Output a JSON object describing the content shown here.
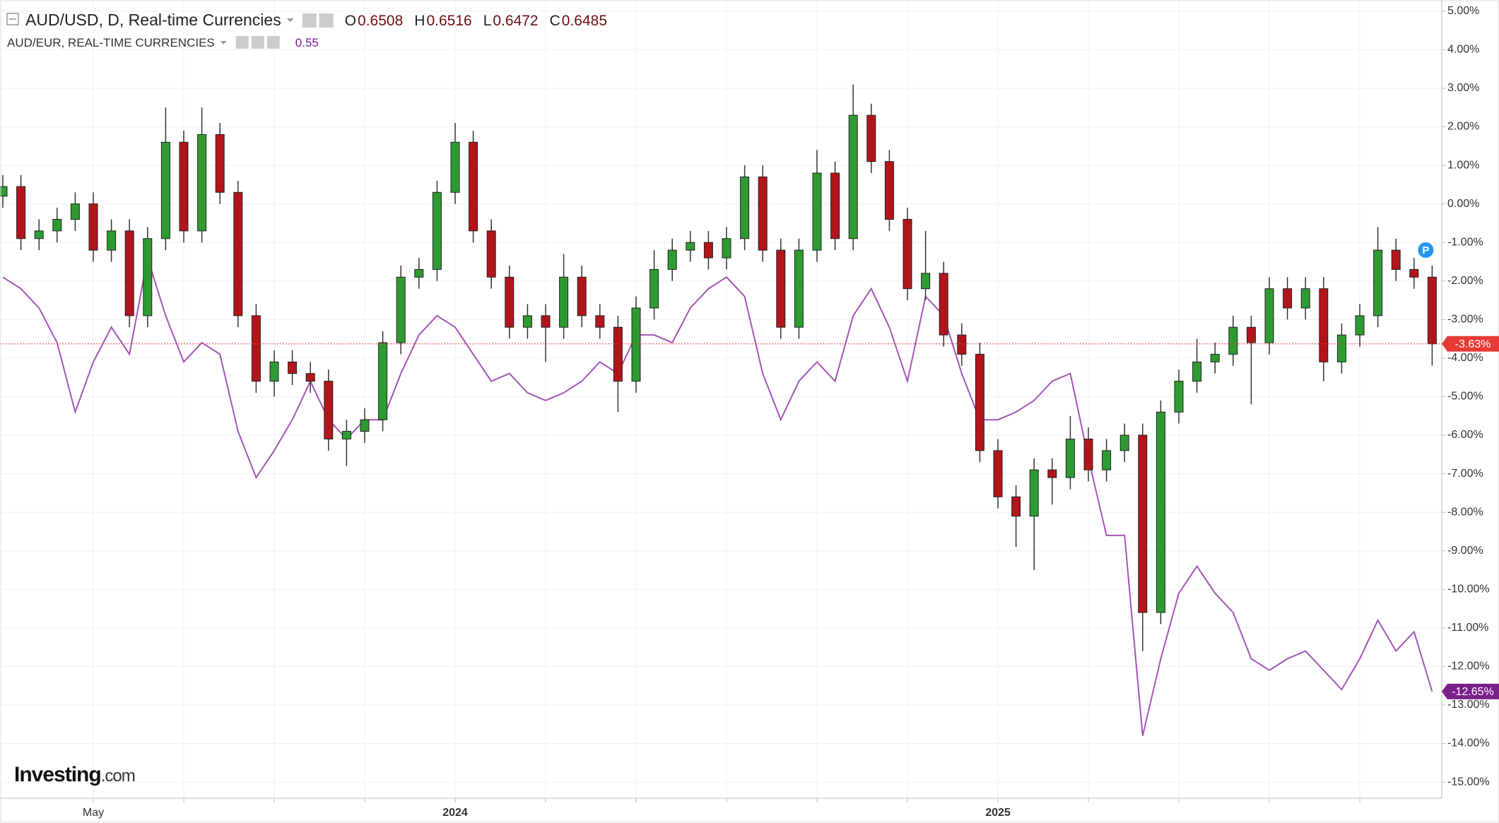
{
  "chart_data": {
    "type": "candlestick",
    "categories": [
      null,
      null,
      null,
      null,
      null,
      "May",
      null,
      null,
      null,
      null,
      null,
      null,
      null,
      null,
      null,
      null,
      null,
      null,
      null,
      null,
      null,
      null,
      null,
      null,
      null,
      "2024",
      null,
      null,
      null,
      null,
      null,
      null,
      null,
      null,
      null,
      null,
      null,
      null,
      null,
      null,
      null,
      null,
      null,
      null,
      null,
      null,
      null,
      null,
      null,
      null,
      null,
      null,
      null,
      null,
      null,
      "2025",
      null,
      null,
      null,
      null,
      null,
      null,
      null,
      null,
      null,
      null,
      null,
      null,
      null,
      null,
      null,
      null,
      null,
      null,
      null,
      null,
      null,
      null,
      null,
      null
    ],
    "ylim": [
      -15.42,
      5.29
    ],
    "yticks": [
      {
        "value": 5,
        "label": "5.00%"
      },
      {
        "value": 4,
        "label": "4.00%"
      },
      {
        "value": 3,
        "label": "3.00%"
      },
      {
        "value": 2,
        "label": "2.00%"
      },
      {
        "value": 1,
        "label": "1.00%"
      },
      {
        "value": 0,
        "label": "0.00%"
      },
      {
        "value": -1,
        "label": "-1.00%"
      },
      {
        "value": -2,
        "label": "-2.00%"
      },
      {
        "value": -3,
        "label": "-3.00%"
      },
      {
        "value": -4,
        "label": "-4.00%"
      },
      {
        "value": -5,
        "label": "-5.00%"
      },
      {
        "value": -6,
        "label": "-6.00%"
      },
      {
        "value": -7,
        "label": "-7.00%"
      },
      {
        "value": -8,
        "label": "-8.00%"
      },
      {
        "value": -9,
        "label": "-9.00%"
      },
      {
        "value": -10,
        "label": "-10.00%"
      },
      {
        "value": -11,
        "label": "-11.00%"
      },
      {
        "value": -12,
        "label": "-12.00%"
      },
      {
        "value": -13,
        "label": "-13.00%"
      },
      {
        "value": -14,
        "label": "-14.00%"
      },
      {
        "value": -15,
        "label": "-15.00%"
      }
    ],
    "grid": true,
    "brand": "Investing",
    "brand_suffix": ".com",
    "series": [
      {
        "name": "AUD/USD, D, Real-time Currencies",
        "type": "candlestick",
        "up_color": "#2e9b32",
        "down_color": "#b3141b",
        "color": "#e53935",
        "quote": [
          {
            "label": "O",
            "value": 0.6508
          },
          {
            "label": "H",
            "value": 0.6516
          },
          {
            "label": "L",
            "value": 0.6472
          },
          {
            "label": "C",
            "value": 0.6485
          }
        ],
        "last_label": "-3.63%",
        "marker": "P",
        "open": [
          0.2,
          0.45,
          -0.9,
          -0.7,
          -0.4,
          0,
          -1.2,
          -0.7,
          -2.9,
          -0.9,
          1.6,
          -0.7,
          1.8,
          0.3,
          -2.9,
          -4.6,
          -4.1,
          -4.4,
          -4.6,
          -6.1,
          -5.9,
          -5.6,
          -3.6,
          -1.9,
          -1.7,
          0.3,
          1.6,
          -0.7,
          -1.9,
          -3.2,
          -2.9,
          -3.2,
          -1.9,
          -2.9,
          -3.2,
          -4.6,
          -2.7,
          -1.7,
          -1.2,
          -1.0,
          -1.4,
          -0.9,
          0.7,
          -1.2,
          -3.2,
          -1.2,
          0.8,
          -0.9,
          2.3,
          1.1,
          -0.4,
          -2.2,
          -1.8,
          -3.4,
          -3.9,
          -6.4,
          -7.6,
          -8.1,
          -6.9,
          -7.1,
          -6.1,
          -6.9,
          -6.4,
          -6.0,
          -10.6,
          -5.4,
          -4.6,
          -4.1,
          -3.9,
          -3.2,
          -3.6,
          -2.2,
          -2.7,
          -2.2,
          -4.1,
          -3.4,
          -2.9,
          -1.2,
          -1.7,
          -1.9
        ],
        "high": [
          0.75,
          0.75,
          -0.4,
          -0.1,
          0.3,
          0.3,
          -0.4,
          -0.4,
          -0.6,
          2.5,
          1.9,
          2.5,
          2.1,
          0.6,
          -2.6,
          -3.8,
          -3.8,
          -4.1,
          -4.3,
          -5.6,
          -5.3,
          -3.3,
          -1.6,
          -1.4,
          0.6,
          2.1,
          1.9,
          -0.4,
          -1.6,
          -2.6,
          -2.6,
          -1.3,
          -1.6,
          -2.6,
          -2.9,
          -2.4,
          -1.2,
          -0.9,
          -0.7,
          -0.7,
          -0.6,
          1.0,
          1.0,
          -0.9,
          -0.9,
          1.4,
          1.1,
          3.1,
          2.6,
          1.4,
          -0.1,
          -0.7,
          -1.5,
          -3.1,
          -3.6,
          -6.1,
          -7.3,
          -6.6,
          -6.6,
          -5.5,
          -5.8,
          -6.1,
          -5.7,
          -5.7,
          -5.1,
          -4.3,
          -3.5,
          -3.6,
          -2.9,
          -2.9,
          -1.9,
          -1.9,
          -1.9,
          -1.9,
          -3.1,
          -2.6,
          -0.6,
          -0.9,
          -1.4,
          -1.6
        ],
        "low": [
          -0.1,
          -1.2,
          -1.2,
          -1.0,
          -0.7,
          -1.5,
          -1.5,
          -3.2,
          -3.2,
          -1.2,
          -1.0,
          -1.0,
          0.0,
          -3.2,
          -4.9,
          -5.0,
          -4.7,
          -4.9,
          -6.4,
          -6.8,
          -6.2,
          -5.9,
          -3.9,
          -2.2,
          -2.0,
          0.0,
          -1.0,
          -2.2,
          -3.5,
          -3.5,
          -4.1,
          -3.5,
          -3.2,
          -3.5,
          -5.4,
          -4.9,
          -3.0,
          -2.0,
          -1.5,
          -1.7,
          -1.7,
          -1.2,
          -1.5,
          -3.5,
          -3.5,
          -1.5,
          -1.2,
          -1.2,
          0.8,
          -0.7,
          -2.5,
          -2.5,
          -3.7,
          -4.2,
          -6.7,
          -7.9,
          -8.9,
          -9.5,
          -7.8,
          -7.4,
          -7.2,
          -7.2,
          -6.7,
          -11.6,
          -10.9,
          -5.7,
          -4.9,
          -4.4,
          -4.2,
          -5.2,
          -3.9,
          -3.0,
          -3.0,
          -4.6,
          -4.4,
          -3.7,
          -3.2,
          -2.0,
          -2.2,
          -4.2
        ],
        "close": [
          0.45,
          -0.9,
          -0.7,
          -0.4,
          0,
          -1.2,
          -0.7,
          -2.9,
          -0.9,
          1.6,
          -0.7,
          1.8,
          0.3,
          -2.9,
          -4.6,
          -4.1,
          -4.4,
          -4.6,
          -6.1,
          -5.9,
          -5.6,
          -3.6,
          -1.9,
          -1.7,
          0.3,
          1.6,
          -0.7,
          -1.9,
          -3.2,
          -2.9,
          -3.2,
          -1.9,
          -2.9,
          -3.2,
          -4.6,
          -2.7,
          -1.7,
          -1.2,
          -1.0,
          -1.4,
          -0.9,
          0.7,
          -1.2,
          -3.2,
          -1.2,
          0.8,
          -0.9,
          2.3,
          1.1,
          -0.4,
          -2.2,
          -1.8,
          -3.4,
          -3.9,
          -6.4,
          -7.6,
          -8.1,
          -6.9,
          -7.1,
          -6.1,
          -6.9,
          -6.4,
          -6.0,
          -10.6,
          -5.4,
          -4.6,
          -4.1,
          -3.9,
          -3.2,
          -3.6,
          -2.2,
          -2.7,
          -2.2,
          -4.1,
          -3.4,
          -2.9,
          -1.2,
          -1.7,
          -1.9,
          -3.63
        ]
      },
      {
        "name": "AUD/EUR, REAL-TIME CURRENCIES",
        "type": "line",
        "color": "#a454b8",
        "label_color": "#7b1f8c",
        "quote_value": 0.55,
        "last_label": "-12.65%",
        "values": [
          -1.9,
          -2.2,
          -2.7,
          -3.6,
          -5.4,
          -4.1,
          -3.2,
          -3.9,
          -1.4,
          -2.9,
          -4.1,
          -3.6,
          -3.9,
          -5.9,
          -7.1,
          -6.4,
          -5.6,
          -4.6,
          -5.6,
          -6.1,
          -5.6,
          -5.6,
          -4.4,
          -3.4,
          -2.9,
          -3.2,
          -3.9,
          -4.6,
          -4.4,
          -4.9,
          -5.1,
          -4.9,
          -4.6,
          -4.1,
          -4.4,
          -3.4,
          -3.4,
          -3.6,
          -2.7,
          -2.2,
          -1.9,
          -2.4,
          -4.4,
          -5.6,
          -4.6,
          -4.1,
          -4.6,
          -2.9,
          -2.2,
          -3.2,
          -4.6,
          -2.4,
          -2.9,
          -4.4,
          -5.6,
          -5.6,
          -5.4,
          -5.1,
          -4.6,
          -4.4,
          -6.6,
          -8.6,
          -8.6,
          -13.8,
          -11.8,
          -10.1,
          -9.4,
          -10.1,
          -10.6,
          -11.8,
          -12.1,
          -11.8,
          -11.6,
          -12.1,
          -12.6,
          -11.8,
          -10.8,
          -11.6,
          -11.1,
          -12.65
        ]
      }
    ]
  }
}
